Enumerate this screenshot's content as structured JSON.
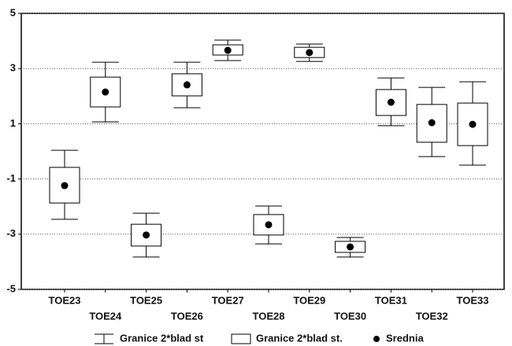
{
  "chart_data": {
    "type": "box",
    "categories": [
      "TOE23",
      "TOE24",
      "TOE25",
      "TOE26",
      "TOE27",
      "TOE28",
      "TOE29",
      "TOE30",
      "TOE31",
      "TOE32",
      "TOE33"
    ],
    "series": [
      {
        "name": "Granice 2*blad st",
        "color": "#000000",
        "low": [
          -2.46,
          1.07,
          -3.83,
          1.58,
          3.29,
          -3.35,
          3.26,
          -3.83,
          0.93,
          -0.19,
          -0.5
        ],
        "high": [
          0.04,
          3.23,
          -2.24,
          3.23,
          4.03,
          -1.98,
          3.89,
          -3.12,
          2.66,
          2.32,
          2.52
        ]
      },
      {
        "name": "Granice 2*blad st.",
        "color": "#000000",
        "low": [
          -1.87,
          1.61,
          -3.43,
          2.01,
          3.49,
          -3.03,
          3.4,
          -3.66,
          1.3,
          0.33,
          0.21
        ],
        "high": [
          -0.58,
          2.69,
          -2.64,
          2.81,
          3.86,
          -2.29,
          3.77,
          -3.26,
          2.24,
          1.7,
          1.75
        ]
      },
      {
        "name": "Srednia",
        "color": "#000000",
        "values": [
          -1.24,
          2.15,
          -3.03,
          2.41,
          3.66,
          -2.66,
          3.58,
          -3.46,
          1.78,
          1.04,
          0.98
        ]
      }
    ],
    "ylim": [
      -5,
      5
    ],
    "yticks": [
      -5,
      -3,
      -1,
      1,
      3,
      5
    ],
    "grid": true
  }
}
